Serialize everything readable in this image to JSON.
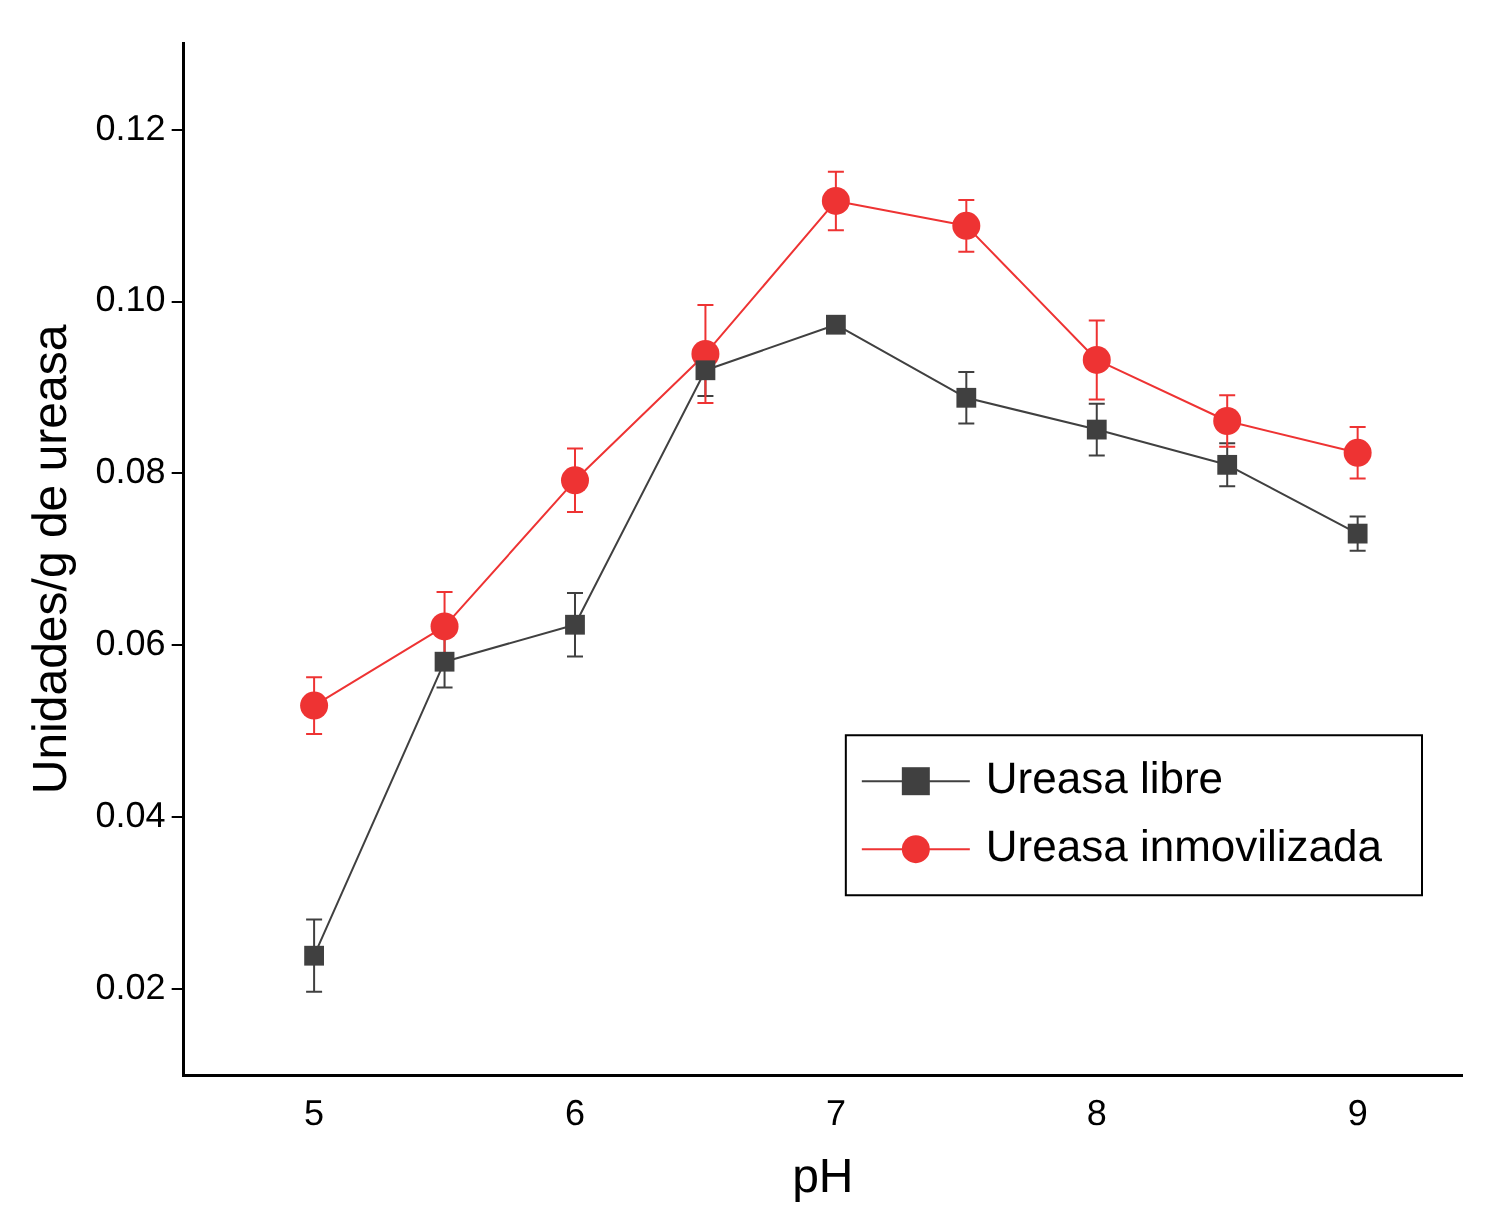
{
  "chart_data": {
    "type": "line",
    "xlabel": "pH",
    "ylabel": "Unidades/g de ureasa",
    "x": [
      5,
      5.5,
      6,
      6.5,
      7,
      7.5,
      8,
      8.5,
      9
    ],
    "series": [
      {
        "name": "Ureasa libre",
        "color": "#404040",
        "marker": "square",
        "values": [
          0.0239,
          0.0581,
          0.0624,
          0.092,
          0.0973,
          0.0888,
          0.0851,
          0.081,
          0.073
        ],
        "errors": [
          0.0042,
          0.003,
          0.0037,
          0.003,
          null,
          0.003,
          0.003,
          0.0025,
          0.002
        ]
      },
      {
        "name": "Ureasa inmovilizada",
        "color": "#ee3333",
        "marker": "circle",
        "values": [
          0.053,
          0.0622,
          0.0792,
          0.0939,
          0.1117,
          0.1088,
          0.0932,
          0.0861,
          0.0824
        ],
        "errors": [
          0.0033,
          0.004,
          0.0037,
          0.0057,
          0.0034,
          0.003,
          0.0046,
          0.003,
          0.003
        ]
      }
    ],
    "xlim": [
      4.5,
      9.4
    ],
    "xticks": [
      5,
      6,
      7,
      8,
      9
    ],
    "ylim": [
      0.01,
      0.13
    ],
    "yticks": [
      {
        "value": 0.02,
        "label": "0.02"
      },
      {
        "value": 0.04,
        "label": "0.04"
      },
      {
        "value": 0.06,
        "label": "0.06"
      },
      {
        "value": 0.08,
        "label": "0.08"
      },
      {
        "value": 0.1,
        "label": "0.10"
      },
      {
        "value": 0.12,
        "label": "0.12"
      }
    ],
    "grid": false,
    "legend": "bottom right",
    "line_style": "solid"
  }
}
